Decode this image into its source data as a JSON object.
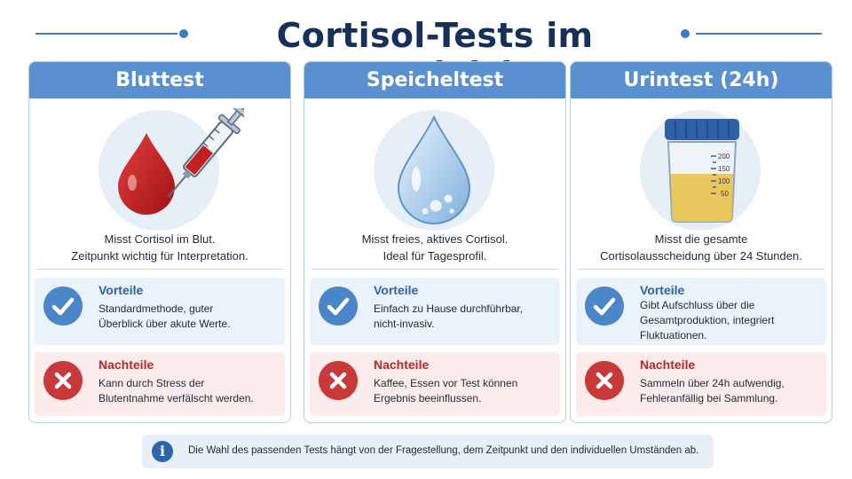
{
  "title": "Cortisol-Tests im Vergleich",
  "colors": {
    "header": "#5a8fd0",
    "title": "#17305a",
    "pro": "#4a86c9",
    "con": "#c9393a"
  },
  "cards": [
    {
      "name": "Bluttest",
      "icon": "blood-syringe-icon",
      "desc_line1": "Misst Cortisol im Blut.",
      "desc_line2": "Zeitpunkt wichtig für Interpretation.",
      "pro_title": "Vorteile",
      "pro_line1": "Standardmethode, guter",
      "pro_line2": "Überblick über akute Werte.",
      "pro_line3": "",
      "con_title": "Nachteile",
      "con_line1": "Kann durch Stress der",
      "con_line2": "Blutentnahme verfälscht werden."
    },
    {
      "name": "Speicheltest",
      "icon": "water-drop-icon",
      "desc_line1": "Misst freies, aktives Cortisol.",
      "desc_line2": "Ideal für Tagesprofil.",
      "pro_title": "Vorteile",
      "pro_line1": "Einfach zu Hause durchführbar,",
      "pro_line2": "nicht-invasiv.",
      "pro_line3": "",
      "con_title": "Nachteile",
      "con_line1": "Kaffee, Essen vor Test können",
      "con_line2": "Ergebnis beeinflussen."
    },
    {
      "name": "Urintest (24h)",
      "icon": "urine-cup-icon",
      "cup_marks": [
        "200",
        "150",
        "100",
        "50"
      ],
      "desc_line1": "Misst die gesamte",
      "desc_line2": "Cortisolausscheidung über 24 Stunden.",
      "pro_title": "Vorteile",
      "pro_line1": "Gibt Aufschluss über die",
      "pro_line2": "Gesamtproduktion, integriert",
      "pro_line3": "Fluktuationen.",
      "con_title": "Nachteile",
      "con_line1": "Sammeln über 24h aufwendig,",
      "con_line2": "Fehleranfällig bei Sammlung."
    }
  ],
  "info": {
    "icon_label": "i",
    "text": "Die Wahl des passenden Tests hängt von der Fragestellung, dem Zeitpunkt und den individuellen Umständen ab."
  }
}
